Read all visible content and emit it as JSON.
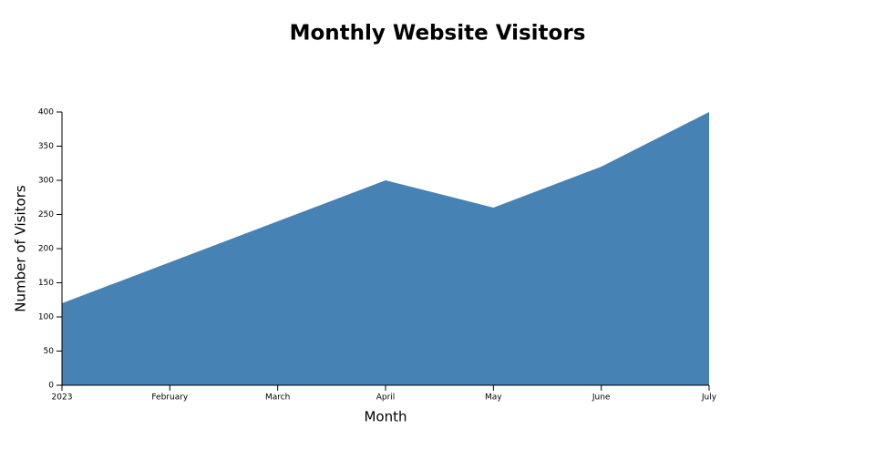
{
  "chart_data": {
    "type": "area",
    "title": "Monthly Website Visitors",
    "x_label": "Month",
    "y_label": "Number of Visitors",
    "categories": [
      "2023",
      "February",
      "March",
      "April",
      "May",
      "June",
      "July"
    ],
    "values": [
      120,
      180,
      240,
      300,
      260,
      320,
      400
    ],
    "color": "#4682b4",
    "ylim": [
      0,
      400
    ],
    "yticks": [
      0,
      50,
      100,
      150,
      200,
      250,
      300,
      350,
      400
    ]
  }
}
